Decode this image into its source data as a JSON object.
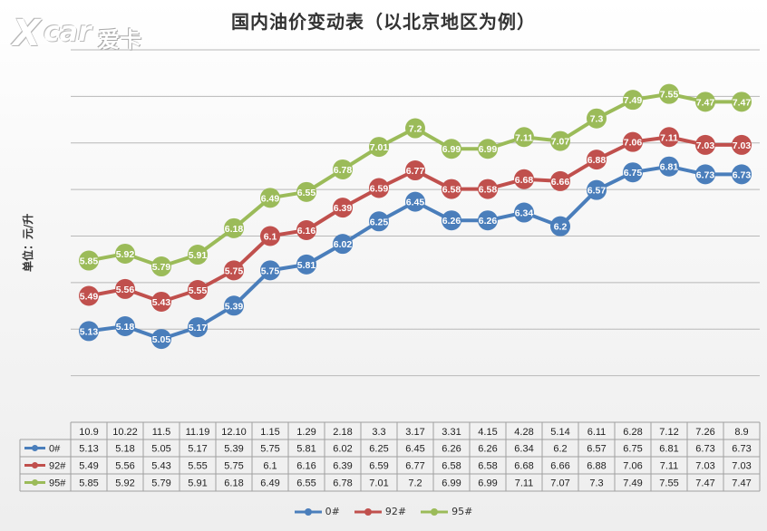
{
  "title": "国内油价变动表（以北京地区为例）",
  "ylabel": "单位：元/升",
  "watermark": {
    "mark": "X",
    "car": "car",
    "cn": "爱卡"
  },
  "chart_data": {
    "type": "line",
    "categories": [
      "10.9",
      "10.22",
      "11.5",
      "11.19",
      "12.10",
      "1.15",
      "1.29",
      "2.18",
      "3.3",
      "3.17",
      "3.31",
      "4.15",
      "4.28",
      "5.14",
      "6.11",
      "6.28",
      "7.12",
      "7.26",
      "8.9"
    ],
    "series": [
      {
        "name": "0#",
        "color": "#4a7ebb",
        "values": [
          5.13,
          5.18,
          5.05,
          5.17,
          5.39,
          5.75,
          5.81,
          6.02,
          6.25,
          6.45,
          6.26,
          6.26,
          6.34,
          6.2,
          6.57,
          6.75,
          6.81,
          6.73,
          6.73
        ]
      },
      {
        "name": "92#",
        "color": "#c0504d",
        "values": [
          5.49,
          5.56,
          5.43,
          5.55,
          5.75,
          6.1,
          6.16,
          6.39,
          6.59,
          6.77,
          6.58,
          6.58,
          6.68,
          6.66,
          6.88,
          7.06,
          7.11,
          7.03,
          7.03
        ]
      },
      {
        "name": "95#",
        "color": "#9bbb59",
        "values": [
          5.85,
          5.92,
          5.79,
          5.91,
          6.18,
          6.49,
          6.55,
          6.78,
          7.01,
          7.2,
          6.99,
          6.99,
          7.11,
          7.07,
          7.3,
          7.49,
          7.55,
          7.47,
          7.47
        ]
      }
    ],
    "grid": true,
    "data_table": true,
    "legend_position": "bottom"
  }
}
